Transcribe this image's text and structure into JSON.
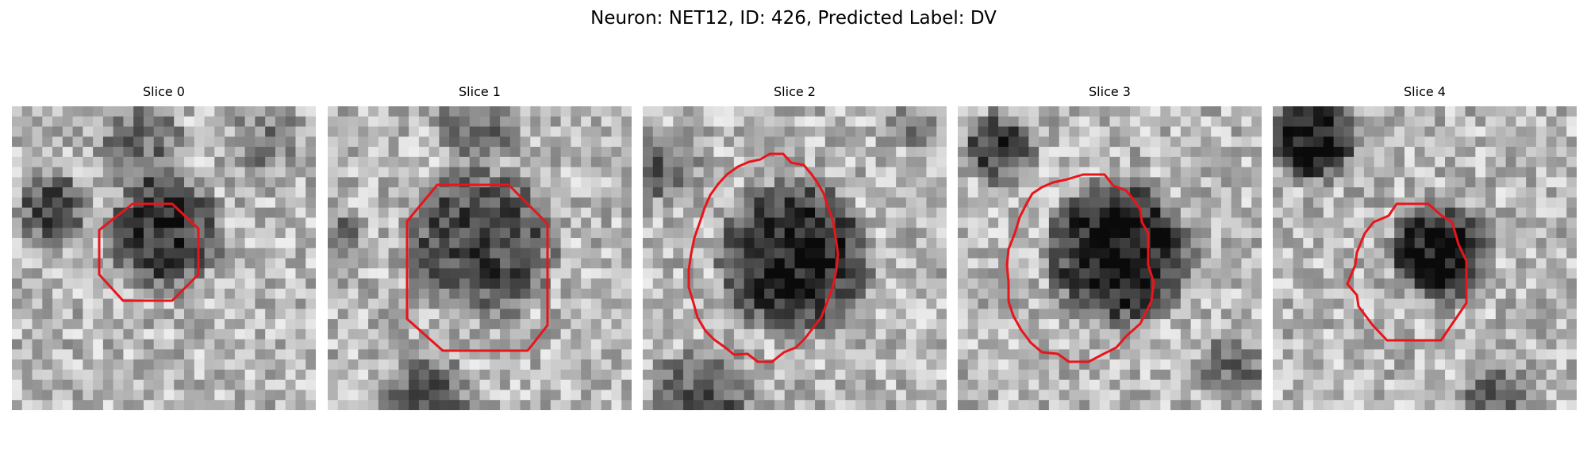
{
  "figure": {
    "title": "Neuron: NET12, ID: 426, Predicted Label: DV"
  },
  "panels": [
    {
      "title": "Slice 0"
    },
    {
      "title": "Slice 1"
    },
    {
      "title": "Slice 2"
    },
    {
      "title": "Slice 3"
    },
    {
      "title": "Slice 4"
    }
  ],
  "colors": {
    "contour": "#e8151b",
    "background": "#ffffff"
  }
}
